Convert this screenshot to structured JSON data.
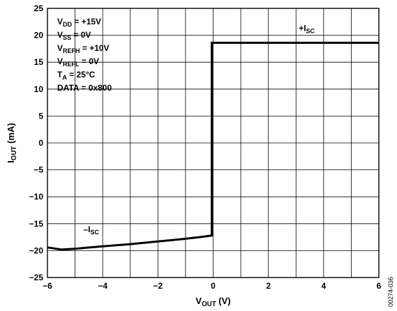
{
  "chart_data": {
    "type": "line",
    "xlim": [
      -6,
      6
    ],
    "ylim": [
      -25,
      25
    ],
    "x_ticks": [
      -6,
      -4,
      -2,
      0,
      2,
      4,
      6
    ],
    "y_ticks": [
      25,
      20,
      15,
      10,
      5,
      0,
      -5,
      -10,
      -15,
      -20,
      -25
    ],
    "x_minor_step": 1,
    "grid": true,
    "x_tick_labels": [
      "−6",
      "−4",
      "−2",
      "0",
      "2",
      "4",
      "6"
    ],
    "y_tick_labels": [
      "25",
      "20",
      "15",
      "10",
      "5",
      "0",
      "−5",
      "−10",
      "−15",
      "−20",
      "−25"
    ],
    "xlabel": {
      "main": "V",
      "sub": "OUT",
      "rest": " (V)"
    },
    "ylabel": {
      "main": "I",
      "sub": "OUT",
      "rest": " (mA)"
    },
    "series": [
      {
        "x": [
          -6,
          -5.5,
          -5,
          -4,
          -3,
          -2,
          -1,
          -0.5,
          -0.05,
          -0.05,
          0,
          6
        ],
        "y": [
          -19.4,
          -19.8,
          -19.65,
          -19.2,
          -18.8,
          -18.3,
          -17.8,
          -17.5,
          -17.2,
          18.6,
          18.6,
          18.6
        ]
      }
    ],
    "annotations": [
      {
        "prefix": "+I",
        "sub": "SC",
        "x": 3.1,
        "y": 20.8
      },
      {
        "prefix": "–I",
        "sub": "SC",
        "x": -4.7,
        "y": -16.6
      }
    ],
    "conditions": [
      {
        "main": "V",
        "sub": "DD",
        "rest": " = +15V"
      },
      {
        "main": "V",
        "sub": "SS",
        "rest": " = 0V"
      },
      {
        "main": "V",
        "sub": "REFH",
        "rest": " = +10V"
      },
      {
        "main": "V",
        "sub": "REFL",
        "rest": " = 0V"
      },
      {
        "main": "T",
        "sub": "A",
        "rest": " = 25°C"
      },
      {
        "main": "DATA = 0x800",
        "sub": "",
        "rest": ""
      }
    ]
  },
  "document_id": "00274-036"
}
